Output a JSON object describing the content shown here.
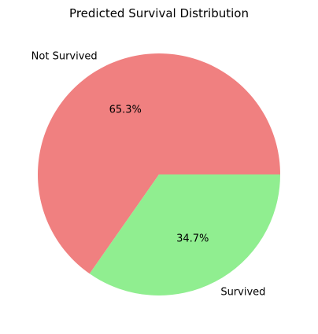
{
  "chart_data": {
    "type": "pie",
    "title": "Predicted Survival Distribution",
    "slices": [
      {
        "label": "Not Survived",
        "value": 65.3,
        "percent_label": "65.3%",
        "color": "#f08080"
      },
      {
        "label": "Survived",
        "value": 34.7,
        "percent_label": "34.7%",
        "color": "#90ee90"
      }
    ],
    "start_angle": 0,
    "direction": "counterclockwise",
    "legend": "none"
  }
}
